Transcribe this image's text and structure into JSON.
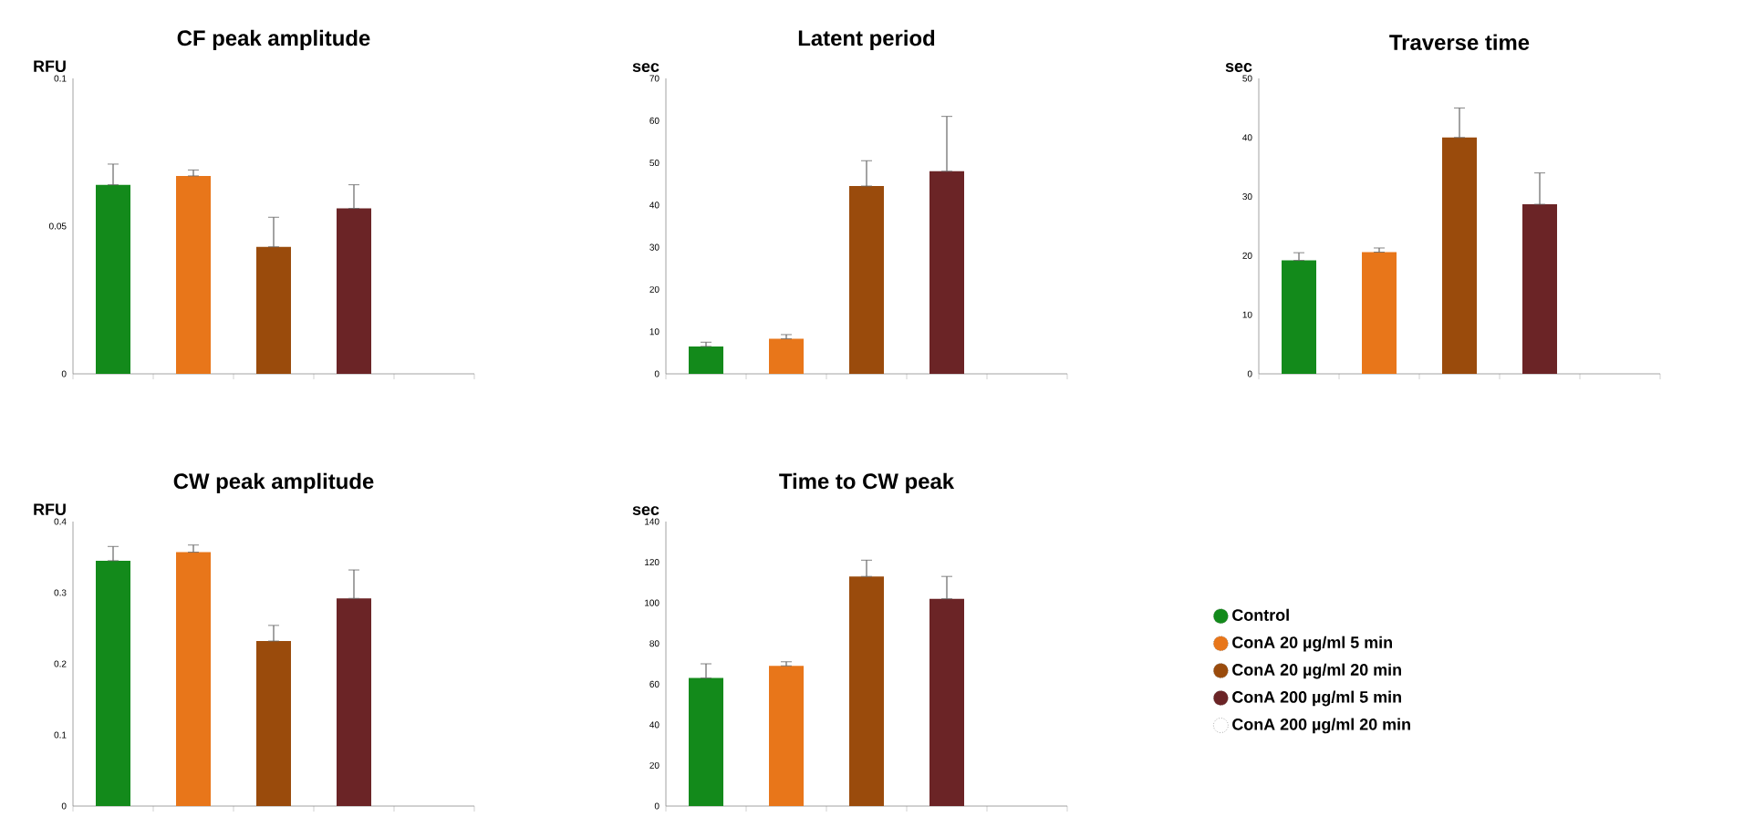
{
  "chart_data": [
    {
      "type": "bar",
      "title": "CF peak amplitude",
      "ylabel": "RFU",
      "categories": [
        null,
        null,
        null,
        null,
        null
      ],
      "ylim": [
        0,
        0.1
      ],
      "yticks": [
        0,
        0.05,
        0.1
      ],
      "grid": false,
      "legend": false,
      "series": [
        {
          "color": "#138a1b",
          "values": [
            0.064,
            null,
            null,
            null,
            null
          ],
          "errors": [
            [
              0.064,
              0.071
            ],
            null,
            null,
            null,
            null
          ]
        },
        {
          "color": "#e8761a",
          "values": [
            null,
            0.067,
            null,
            null,
            null
          ],
          "errors": [
            null,
            [
              0.067,
              0.069
            ],
            null,
            null,
            null
          ]
        },
        {
          "color": "#9a4b0c",
          "values": [
            null,
            null,
            0.043,
            null,
            null
          ],
          "errors": [
            null,
            null,
            [
              0.043,
              0.053
            ],
            null,
            null
          ]
        },
        {
          "color": "#6b2426",
          "values": [
            null,
            null,
            null,
            0.056,
            null
          ],
          "errors": [
            null,
            null,
            null,
            [
              0.056,
              0.064
            ],
            null
          ]
        },
        {
          "color": "#ffffff",
          "values": [
            null,
            null,
            null,
            null,
            null
          ]
        }
      ]
    },
    {
      "type": "bar",
      "title": "Latent period",
      "ylabel": "sec",
      "categories": [
        null,
        null,
        null,
        null,
        null
      ],
      "ylim": [
        0,
        70
      ],
      "yticks": [
        0,
        10,
        20,
        30,
        40,
        50,
        60,
        70
      ],
      "grid": false,
      "legend": false,
      "series": [
        {
          "color": "#138a1b",
          "values": [
            6.5,
            null,
            null,
            null,
            null
          ],
          "errors": [
            [
              6.5,
              7.5
            ],
            null,
            null,
            null,
            null
          ]
        },
        {
          "color": "#e8761a",
          "values": [
            null,
            8.3,
            null,
            null,
            null
          ],
          "errors": [
            null,
            [
              8.3,
              9.3
            ],
            null,
            null,
            null
          ]
        },
        {
          "color": "#9a4b0c",
          "values": [
            null,
            null,
            44.5,
            null,
            null
          ],
          "errors": [
            null,
            null,
            [
              44.5,
              50.5
            ],
            null,
            null
          ]
        },
        {
          "color": "#6b2426",
          "values": [
            null,
            null,
            null,
            48,
            null
          ],
          "errors": [
            null,
            null,
            null,
            [
              48,
              61
            ],
            null
          ]
        },
        {
          "color": "#ffffff",
          "values": [
            null,
            null,
            null,
            null,
            null
          ]
        }
      ]
    },
    {
      "type": "bar",
      "title": "Traverse time",
      "ylabel": "sec",
      "categories": [
        null,
        null,
        null,
        null,
        null
      ],
      "ylim": [
        0,
        50
      ],
      "yticks": [
        0,
        10,
        20,
        30,
        40,
        50
      ],
      "grid": false,
      "legend": false,
      "series": [
        {
          "color": "#138a1b",
          "values": [
            19.2,
            null,
            null,
            null,
            null
          ],
          "errors": [
            [
              19.2,
              20.5
            ],
            null,
            null,
            null,
            null
          ]
        },
        {
          "color": "#e8761a",
          "values": [
            null,
            20.6,
            null,
            null,
            null
          ],
          "errors": [
            null,
            [
              20.6,
              21.3
            ],
            null,
            null,
            null
          ]
        },
        {
          "color": "#9a4b0c",
          "values": [
            null,
            null,
            40,
            null,
            null
          ],
          "errors": [
            null,
            null,
            [
              40,
              45
            ],
            null,
            null
          ]
        },
        {
          "color": "#6b2426",
          "values": [
            null,
            null,
            null,
            28.7,
            null
          ],
          "errors": [
            null,
            null,
            null,
            [
              28.7,
              34
            ],
            null
          ]
        },
        {
          "color": "#ffffff",
          "values": [
            null,
            null,
            null,
            null,
            null
          ]
        }
      ]
    },
    {
      "type": "bar",
      "title": "CW peak amplitude",
      "ylabel": "RFU",
      "categories": [
        null,
        null,
        null,
        null,
        null
      ],
      "ylim": [
        0,
        0.4
      ],
      "yticks": [
        0,
        0.1,
        0.2,
        0.3,
        0.4
      ],
      "grid": false,
      "legend": false,
      "series": [
        {
          "color": "#138a1b",
          "values": [
            0.345,
            null,
            null,
            null,
            null
          ],
          "errors": [
            [
              0.345,
              0.365
            ],
            null,
            null,
            null,
            null
          ]
        },
        {
          "color": "#e8761a",
          "values": [
            null,
            0.357,
            null,
            null,
            null
          ],
          "errors": [
            null,
            [
              0.357,
              0.367
            ],
            null,
            null,
            null
          ]
        },
        {
          "color": "#9a4b0c",
          "values": [
            null,
            null,
            0.232,
            null,
            null
          ],
          "errors": [
            null,
            null,
            [
              0.232,
              0.254
            ],
            null,
            null
          ]
        },
        {
          "color": "#6b2426",
          "values": [
            null,
            null,
            null,
            0.292,
            null
          ],
          "errors": [
            null,
            null,
            null,
            [
              0.292,
              0.332
            ],
            null
          ]
        },
        {
          "color": "#ffffff",
          "values": [
            null,
            null,
            null,
            null,
            null
          ]
        }
      ]
    },
    {
      "type": "bar",
      "title": "Time to CW peak",
      "ylabel": "sec",
      "categories": [
        null,
        null,
        null,
        null,
        null
      ],
      "ylim": [
        0,
        140
      ],
      "yticks": [
        0,
        20,
        40,
        60,
        80,
        100,
        120,
        140
      ],
      "grid": false,
      "legend": "right",
      "series": [
        {
          "name": "Control",
          "color": "#138a1b",
          "values": [
            63,
            null,
            null,
            null,
            null
          ],
          "errors": [
            [
              63,
              70
            ],
            null,
            null,
            null,
            null
          ]
        },
        {
          "name": "ConA 20 µg/ml 5 min",
          "color": "#e8761a",
          "values": [
            null,
            69,
            null,
            null,
            null
          ],
          "errors": [
            null,
            [
              69,
              71
            ],
            null,
            null,
            null
          ]
        },
        {
          "name": "ConA 20 µg/ml 20 min",
          "color": "#9a4b0c",
          "values": [
            null,
            null,
            113,
            null,
            null
          ],
          "errors": [
            null,
            null,
            [
              113,
              121
            ],
            null,
            null
          ]
        },
        {
          "name": "ConA 200 µg/ml 5 min",
          "color": "#6b2426",
          "values": [
            null,
            null,
            null,
            102,
            null
          ],
          "errors": [
            null,
            null,
            null,
            [
              102,
              113
            ],
            null
          ]
        },
        {
          "name": "ConA 200 µg/ml 20 min",
          "color": "#ffffff",
          "values": [
            null,
            null,
            null,
            null,
            null
          ]
        }
      ]
    }
  ]
}
